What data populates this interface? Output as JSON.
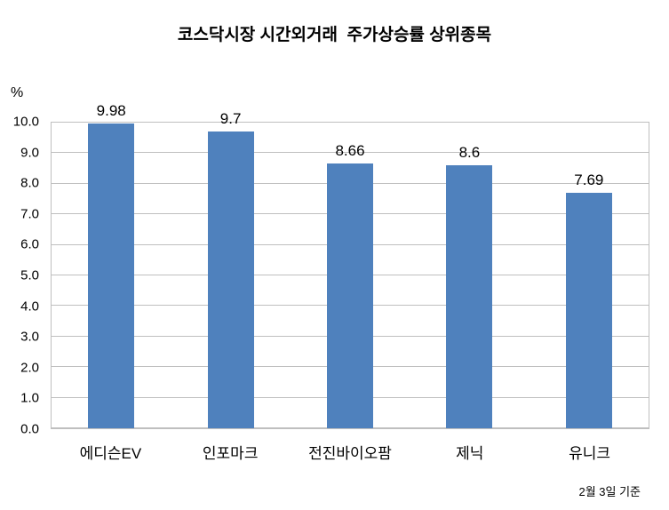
{
  "chart_data": {
    "type": "bar",
    "title": "코스닥시장 시간외거래  주가상승률 상위종목",
    "unit_label": "%",
    "categories": [
      "에디슨EV",
      "인포마크",
      "전진바이오팜",
      "제닉",
      "유니크"
    ],
    "values": [
      9.98,
      9.7,
      8.66,
      8.6,
      7.69
    ],
    "value_labels": [
      "9.98",
      "9.7",
      "8.66",
      "8.6",
      "7.69"
    ],
    "ylim": [
      0,
      10
    ],
    "ytick_labels": [
      "0.0",
      "1.0",
      "2.0",
      "3.0",
      "4.0",
      "5.0",
      "6.0",
      "7.0",
      "8.0",
      "9.0",
      "10.0"
    ],
    "grid": true,
    "legend": "none",
    "bar_color": "#4F81BD",
    "gridline_color": "#BFBFBF",
    "footnote": "2월 3일 기준"
  }
}
